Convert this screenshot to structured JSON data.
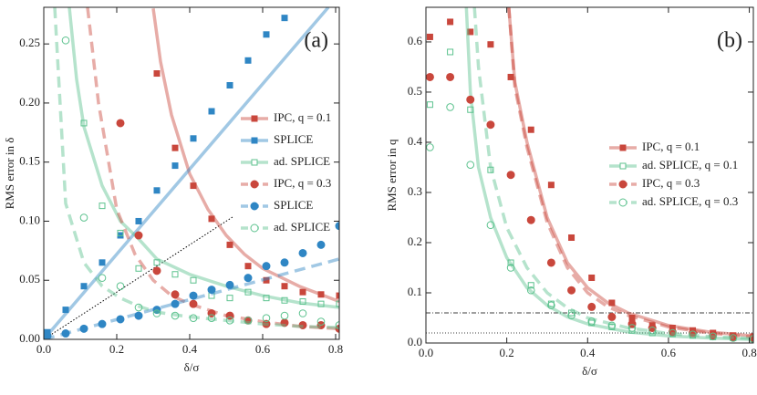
{
  "chart_data": [
    {
      "type": "line",
      "panel_label": "(a)",
      "xlabel": "δ/σ",
      "ylabel": "RMS error in δ",
      "xlim": [
        0,
        0.81
      ],
      "ylim": [
        0,
        0.281
      ],
      "xticks": [
        {
          "value": 0,
          "label": "0.0"
        },
        0.2,
        0.4,
        0.6,
        0.8
      ],
      "yticks": [
        {
          "value": 0,
          "label": "0.00"
        },
        0.05,
        {
          "value": 0.1,
          "label": "0.10"
        },
        0.15,
        {
          "value": 0.2,
          "label": "0.20"
        },
        0.25
      ],
      "legend": "center right",
      "guide": {
        "x": [
          0,
          0.52
        ],
        "values": [
          0,
          0.104
        ]
      },
      "series": [
        {
          "name": "IPC, q = 0.1",
          "color": "#c9473c",
          "dashed": false,
          "marker": "square",
          "filled": true,
          "x": [
            0.31,
            0.36,
            0.41,
            0.46,
            0.51,
            0.56,
            0.61,
            0.66,
            0.71,
            0.76,
            0.81
          ],
          "values": [
            0.225,
            0.162,
            0.13,
            0.102,
            0.08,
            0.062,
            0.05,
            0.045,
            0.04,
            0.038,
            0.037
          ],
          "curve_x": [
            0.3,
            0.32,
            0.35,
            0.4,
            0.45,
            0.5,
            0.55,
            0.6,
            0.7,
            0.81
          ],
          "curve_values": [
            0.28,
            0.235,
            0.19,
            0.14,
            0.11,
            0.088,
            0.072,
            0.06,
            0.045,
            0.032
          ]
        },
        {
          "name": "SPLICE",
          "color": "#2f86c4",
          "dashed": false,
          "marker": "square",
          "filled": true,
          "x": [
            0.01,
            0.06,
            0.11,
            0.16,
            0.21,
            0.26,
            0.31,
            0.36,
            0.41,
            0.46,
            0.51,
            0.56,
            0.61,
            0.66
          ],
          "values": [
            0.006,
            0.025,
            0.045,
            0.065,
            0.088,
            0.1,
            0.126,
            0.147,
            0.17,
            0.193,
            0.215,
            0.236,
            0.258,
            0.272
          ],
          "curve_x": [
            0,
            0.78
          ],
          "curve_values": [
            0,
            0.281
          ]
        },
        {
          "name": "ad. SPLICE",
          "color": "#5cc28e",
          "dashed": false,
          "marker": "square",
          "filled": false,
          "x": [
            0.11,
            0.16,
            0.21,
            0.26,
            0.31,
            0.36,
            0.41,
            0.46,
            0.51,
            0.56,
            0.61,
            0.66,
            0.71,
            0.76,
            0.81
          ],
          "values": [
            0.183,
            0.113,
            0.09,
            0.06,
            0.065,
            0.055,
            0.05,
            0.037,
            0.035,
            0.04,
            0.035,
            0.033,
            0.032,
            0.03,
            0.03
          ],
          "curve_x": [
            0.07,
            0.09,
            0.11,
            0.16,
            0.21,
            0.26,
            0.31,
            0.4,
            0.5,
            0.6,
            0.7,
            0.81
          ],
          "curve_values": [
            0.281,
            0.22,
            0.18,
            0.13,
            0.1,
            0.085,
            0.068,
            0.055,
            0.045,
            0.037,
            0.031,
            0.027
          ]
        },
        {
          "name": "IPC, q = 0.3",
          "color": "#c9473c",
          "dashed": true,
          "marker": "circle",
          "filled": true,
          "x": [
            0.21,
            0.26,
            0.31,
            0.36,
            0.41,
            0.46,
            0.51,
            0.56,
            0.61,
            0.66,
            0.71,
            0.76,
            0.81
          ],
          "values": [
            0.183,
            0.088,
            0.058,
            0.038,
            0.03,
            0.022,
            0.02,
            0.016,
            0.013,
            0.014,
            0.012,
            0.012,
            0.009
          ],
          "curve_x": [
            0.12,
            0.15,
            0.2,
            0.25,
            0.3,
            0.35,
            0.4,
            0.5,
            0.6,
            0.7,
            0.81
          ],
          "curve_values": [
            0.281,
            0.2,
            0.11,
            0.072,
            0.05,
            0.037,
            0.03,
            0.02,
            0.015,
            0.011,
            0.009
          ]
        },
        {
          "name": "SPLICE",
          "color": "#2f86c4",
          "dashed": true,
          "marker": "circle",
          "filled": true,
          "x": [
            0.01,
            0.06,
            0.11,
            0.16,
            0.21,
            0.26,
            0.31,
            0.36,
            0.41,
            0.46,
            0.51,
            0.56,
            0.61,
            0.66,
            0.71,
            0.76,
            0.81
          ],
          "values": [
            0.003,
            0.005,
            0.009,
            0.013,
            0.017,
            0.02,
            0.025,
            0.03,
            0.037,
            0.042,
            0.046,
            0.052,
            0.062,
            0.065,
            0.073,
            0.08,
            0.096
          ],
          "curve_x": [
            0,
            0.81
          ],
          "curve_values": [
            0,
            0.068
          ]
        },
        {
          "name": "ad. SPLICE",
          "color": "#5cc28e",
          "dashed": true,
          "marker": "circle",
          "filled": false,
          "x": [
            0.06,
            0.11,
            0.16,
            0.21,
            0.26,
            0.31,
            0.36,
            0.41,
            0.46,
            0.51,
            0.56,
            0.61,
            0.66,
            0.71,
            0.76,
            0.81
          ],
          "values": [
            0.253,
            0.103,
            0.052,
            0.045,
            0.027,
            0.022,
            0.02,
            0.018,
            0.018,
            0.016,
            0.016,
            0.018,
            0.02,
            0.022,
            0.015,
            0.012
          ],
          "curve_x": [
            0.03,
            0.06,
            0.11,
            0.16,
            0.21,
            0.26,
            0.31,
            0.4,
            0.5,
            0.6,
            0.7,
            0.81
          ],
          "curve_values": [
            0.281,
            0.115,
            0.065,
            0.045,
            0.035,
            0.028,
            0.023,
            0.019,
            0.016,
            0.013,
            0.011,
            0.01
          ]
        }
      ]
    },
    {
      "type": "line",
      "panel_label": "(b)",
      "xlabel": "δ/σ",
      "ylabel": "RMS error in q",
      "xlim": [
        0,
        0.81
      ],
      "ylim": [
        0,
        0.669
      ],
      "xticks": [
        {
          "value": 0,
          "label": "0.0"
        },
        0.2,
        0.4,
        0.6,
        0.8
      ],
      "yticks": [
        {
          "value": 0,
          "label": "0.0"
        },
        0.1,
        0.2,
        0.3,
        0.4,
        0.5,
        0.6
      ],
      "legend": "center right",
      "hlines": [
        {
          "value": 0.06,
          "style": "dashdot"
        },
        {
          "value": 0.02,
          "style": "dotted"
        }
      ],
      "series": [
        {
          "name": "IPC, q = 0.1",
          "color": "#c9473c",
          "dashed": false,
          "marker": "square",
          "filled": true,
          "x": [
            0.01,
            0.06,
            0.11,
            0.16,
            0.21,
            0.26,
            0.31,
            0.36,
            0.41,
            0.46,
            0.51,
            0.56,
            0.61,
            0.66,
            0.71,
            0.76,
            0.81
          ],
          "values": [
            0.61,
            0.64,
            0.62,
            0.595,
            0.53,
            0.425,
            0.315,
            0.21,
            0.13,
            0.08,
            0.05,
            0.035,
            0.03,
            0.025,
            0.02,
            0.015,
            0.013
          ],
          "curve_x": [
            0.205,
            0.22,
            0.25,
            0.3,
            0.35,
            0.4,
            0.45,
            0.5,
            0.6,
            0.7,
            0.81
          ],
          "curve_values": [
            0.669,
            0.52,
            0.4,
            0.25,
            0.16,
            0.11,
            0.08,
            0.06,
            0.035,
            0.022,
            0.014
          ]
        },
        {
          "name": "ad. SPLICE, q = 0.1",
          "color": "#5cc28e",
          "dashed": false,
          "marker": "square",
          "filled": false,
          "x": [
            0.01,
            0.06,
            0.11,
            0.16,
            0.21,
            0.26,
            0.31,
            0.36,
            0.41,
            0.46,
            0.51,
            0.56,
            0.61,
            0.66,
            0.71,
            0.76,
            0.81
          ],
          "values": [
            0.475,
            0.58,
            0.465,
            0.345,
            0.16,
            0.115,
            0.078,
            0.06,
            0.04,
            0.032,
            0.025,
            0.02,
            0.018,
            0.015,
            0.012,
            0.01,
            0.008
          ],
          "curve_x": [
            0.1,
            0.11,
            0.13,
            0.16,
            0.2,
            0.25,
            0.3,
            0.35,
            0.4,
            0.5,
            0.6,
            0.7,
            0.81
          ],
          "curve_values": [
            0.669,
            0.5,
            0.35,
            0.25,
            0.17,
            0.11,
            0.075,
            0.052,
            0.038,
            0.022,
            0.014,
            0.01,
            0.007
          ]
        },
        {
          "name": "IPC, q = 0.3",
          "color": "#c9473c",
          "dashed": true,
          "marker": "circle",
          "filled": true,
          "x": [
            0.01,
            0.06,
            0.11,
            0.16,
            0.21,
            0.26,
            0.31,
            0.36,
            0.41,
            0.46,
            0.51,
            0.56,
            0.61,
            0.66,
            0.71,
            0.76,
            0.81
          ],
          "values": [
            0.53,
            0.53,
            0.485,
            0.435,
            0.335,
            0.245,
            0.16,
            0.105,
            0.072,
            0.052,
            0.038,
            0.03,
            0.022,
            0.02,
            0.015,
            0.012,
            0.01
          ],
          "curve_x": [
            0.205,
            0.22,
            0.25,
            0.3,
            0.35,
            0.4,
            0.45,
            0.5,
            0.6,
            0.7,
            0.81
          ],
          "curve_values": [
            0.669,
            0.51,
            0.39,
            0.24,
            0.15,
            0.1,
            0.072,
            0.055,
            0.032,
            0.02,
            0.012
          ]
        },
        {
          "name": "ad. SPLICE, q = 0.3",
          "color": "#5cc28e",
          "dashed": true,
          "marker": "circle",
          "filled": false,
          "x": [
            0.01,
            0.06,
            0.11,
            0.16,
            0.21,
            0.26,
            0.31,
            0.36,
            0.41,
            0.46,
            0.51,
            0.56,
            0.61,
            0.66,
            0.71,
            0.76,
            0.81
          ],
          "values": [
            0.39,
            0.47,
            0.355,
            0.235,
            0.15,
            0.105,
            0.075,
            0.055,
            0.043,
            0.035,
            0.03,
            0.025,
            0.02,
            0.017,
            0.013,
            0.01,
            0.008
          ],
          "curve_x": [
            0.12,
            0.13,
            0.16,
            0.2,
            0.25,
            0.3,
            0.35,
            0.4,
            0.5,
            0.6,
            0.7,
            0.81
          ],
          "curve_values": [
            0.669,
            0.55,
            0.35,
            0.23,
            0.15,
            0.1,
            0.07,
            0.05,
            0.03,
            0.019,
            0.013,
            0.009
          ]
        }
      ]
    }
  ]
}
